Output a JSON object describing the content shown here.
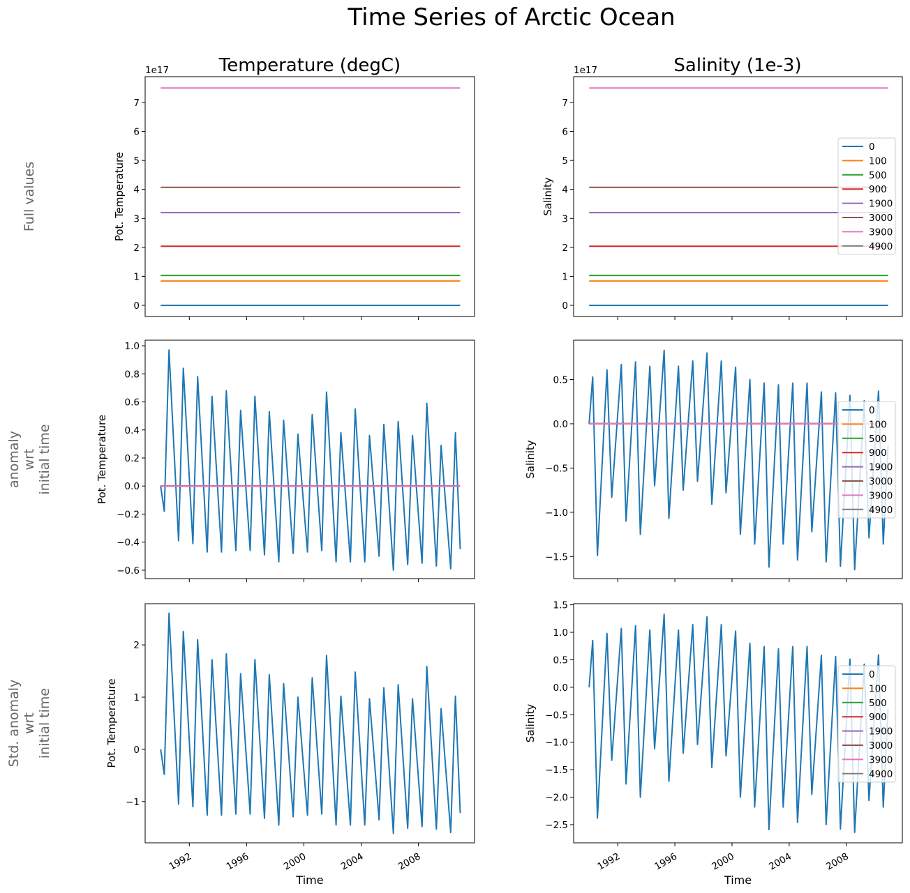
{
  "suptitle": "Time Series of Arctic Ocean",
  "column_titles": [
    "Temperature (degC)",
    "Salinity (1e-3)"
  ],
  "row_labels": [
    [
      "Full values"
    ],
    [
      "anomaly",
      "wrt",
      "initial time"
    ],
    [
      "Std. anomaly",
      "wrt",
      "initial time"
    ]
  ],
  "xlabel": "Time",
  "xticks": [
    "1992",
    "1996",
    "2000",
    "2004",
    "2008"
  ],
  "xlim": [
    "1988-12",
    "2011-12"
  ],
  "legend": {
    "depths": [
      "0",
      "100",
      "500",
      "900",
      "1900",
      "3000",
      "3900",
      "4900"
    ],
    "colors": [
      "#1f77b4",
      "#ff7f0e",
      "#2ca02c",
      "#d62728",
      "#9467bd",
      "#8c564b",
      "#e377c2",
      "#7f7f7f"
    ],
    "placement": "center-right"
  },
  "chart_data": [
    {
      "type": "line",
      "row": 0,
      "col": 0,
      "ylabel": "Pot. Temperature",
      "offset_text": "1e17",
      "ylim": [
        -0.385,
        7.89
      ],
      "yticks": [
        0,
        1,
        2,
        3,
        4,
        5,
        6,
        7
      ],
      "legend": false,
      "constant_series": {
        "0": 0,
        "100": 0.84,
        "500": 1.03,
        "900": 2.04,
        "1900": 3.2,
        "3000": 4.07,
        "3900": 7.5,
        "4900": null
      },
      "x_range": [
        "1990-01",
        "2010-12"
      ]
    },
    {
      "type": "line",
      "row": 0,
      "col": 1,
      "ylabel": "Salinity",
      "offset_text": "1e17",
      "ylim": [
        -0.385,
        7.89
      ],
      "yticks": [
        0,
        1,
        2,
        3,
        4,
        5,
        6,
        7
      ],
      "legend": true,
      "constant_series": {
        "0": 0,
        "100": 0.84,
        "500": 1.03,
        "900": 2.04,
        "1900": 3.2,
        "3000": 4.07,
        "3900": 7.5,
        "4900": null
      },
      "x_range": [
        "1990-01",
        "2010-12"
      ]
    },
    {
      "type": "line",
      "row": 1,
      "col": 0,
      "ylabel": "Pot. Temperature",
      "ylim": [
        -0.66,
        1.04
      ],
      "yticks": [
        -0.6,
        -0.4,
        -0.2,
        0.0,
        0.2,
        0.4,
        0.6,
        0.8,
        1.0
      ],
      "ytick_decimals": 1,
      "legend": false,
      "constant_series": {
        "100": 0,
        "500": 0,
        "900": 0,
        "1900": 0,
        "3000": 0,
        "3900": 0,
        "4900": null
      },
      "x_range": [
        "1990-01",
        "2010-12"
      ],
      "series_0": [
        [
          "1990-01",
          0
        ],
        [
          "1990-04",
          -0.18
        ],
        [
          "1990-08",
          0.97
        ],
        [
          "1991-04",
          -0.39
        ],
        [
          "1991-08",
          0.84
        ],
        [
          "1992-04",
          -0.41
        ],
        [
          "1992-08",
          0.78
        ],
        [
          "1993-04",
          -0.47
        ],
        [
          "1993-08",
          0.64
        ],
        [
          "1994-04",
          -0.47
        ],
        [
          "1994-08",
          0.68
        ],
        [
          "1995-04",
          -0.46
        ],
        [
          "1995-08",
          0.54
        ],
        [
          "1996-04",
          -0.46
        ],
        [
          "1996-08",
          0.64
        ],
        [
          "1997-04",
          -0.49
        ],
        [
          "1997-08",
          0.53
        ],
        [
          "1998-04",
          -0.54
        ],
        [
          "1998-08",
          0.47
        ],
        [
          "1999-04",
          -0.48
        ],
        [
          "1999-08",
          0.37
        ],
        [
          "2000-04",
          -0.47
        ],
        [
          "2000-08",
          0.51
        ],
        [
          "2001-04",
          -0.46
        ],
        [
          "2001-08",
          0.67
        ],
        [
          "2002-04",
          -0.54
        ],
        [
          "2002-08",
          0.38
        ],
        [
          "2003-04",
          -0.54
        ],
        [
          "2003-08",
          0.55
        ],
        [
          "2004-04",
          -0.54
        ],
        [
          "2004-08",
          0.36
        ],
        [
          "2005-04",
          -0.5
        ],
        [
          "2005-08",
          0.44
        ],
        [
          "2006-04",
          -0.6
        ],
        [
          "2006-08",
          0.46
        ],
        [
          "2007-04",
          -0.56
        ],
        [
          "2007-08",
          0.36
        ],
        [
          "2008-04",
          -0.55
        ],
        [
          "2008-08",
          0.59
        ],
        [
          "2009-04",
          -0.57
        ],
        [
          "2009-08",
          0.29
        ],
        [
          "2010-04",
          -0.59
        ],
        [
          "2010-08",
          0.38
        ],
        [
          "2010-12",
          -0.45
        ]
      ]
    },
    {
      "type": "line",
      "row": 1,
      "col": 1,
      "ylabel": "Salinity",
      "ylim": [
        -1.75,
        0.945
      ],
      "yticks": [
        -1.5,
        -1.0,
        -0.5,
        0.0,
        0.5
      ],
      "ytick_decimals": 1,
      "legend": true,
      "constant_series": {
        "100": 0,
        "500": 0,
        "900": 0,
        "1900": 0,
        "3000": 0,
        "3900": 0,
        "4900": null
      },
      "x_range": [
        "1990-01",
        "2010-12"
      ],
      "series_0": [
        [
          "1990-01",
          0
        ],
        [
          "1990-04",
          0.53
        ],
        [
          "1990-08",
          -1.49
        ],
        [
          "1991-04",
          0.61
        ],
        [
          "1991-08",
          -0.83
        ],
        [
          "1992-04",
          0.67
        ],
        [
          "1992-08",
          -1.1
        ],
        [
          "1993-04",
          0.7
        ],
        [
          "1993-08",
          -1.25
        ],
        [
          "1994-04",
          0.65
        ],
        [
          "1994-08",
          -0.7
        ],
        [
          "1995-04",
          0.83
        ],
        [
          "1995-08",
          -1.07
        ],
        [
          "1996-04",
          0.65
        ],
        [
          "1996-08",
          -0.75
        ],
        [
          "1997-04",
          0.71
        ],
        [
          "1997-08",
          -0.65
        ],
        [
          "1998-04",
          0.8
        ],
        [
          "1998-08",
          -0.91
        ],
        [
          "1999-04",
          0.71
        ],
        [
          "1999-08",
          -0.78
        ],
        [
          "2000-04",
          0.64
        ],
        [
          "2000-08",
          -1.25
        ],
        [
          "2001-04",
          0.5
        ],
        [
          "2001-08",
          -1.36
        ],
        [
          "2002-04",
          0.46
        ],
        [
          "2002-08",
          -1.62
        ],
        [
          "2003-04",
          0.44
        ],
        [
          "2003-08",
          -1.36
        ],
        [
          "2004-04",
          0.46
        ],
        [
          "2004-08",
          -1.54
        ],
        [
          "2005-04",
          0.46
        ],
        [
          "2005-08",
          -1.22
        ],
        [
          "2006-04",
          0.36
        ],
        [
          "2006-08",
          -1.56
        ],
        [
          "2007-04",
          0.35
        ],
        [
          "2007-08",
          -1.61
        ],
        [
          "2008-04",
          0.32
        ],
        [
          "2008-08",
          -1.65
        ],
        [
          "2009-04",
          0.26
        ],
        [
          "2009-08",
          -1.29
        ],
        [
          "2010-04",
          0.37
        ],
        [
          "2010-08",
          -1.36
        ],
        [
          "2010-12",
          -0.25
        ]
      ]
    },
    {
      "type": "line",
      "row": 2,
      "col": 0,
      "ylabel": "Pot. Temperature",
      "ylim": [
        -1.79,
        2.79
      ],
      "yticks": [
        -1,
        0,
        1,
        2
      ],
      "ytick_decimals": 0,
      "legend": false,
      "series_0": [
        [
          "1990-01",
          0
        ],
        [
          "1990-04",
          -0.48
        ],
        [
          "1990-08",
          2.61
        ],
        [
          "1991-04",
          -1.05
        ],
        [
          "1991-08",
          2.26
        ],
        [
          "1992-04",
          -1.1
        ],
        [
          "1992-08",
          2.1
        ],
        [
          "1993-04",
          -1.26
        ],
        [
          "1993-08",
          1.72
        ],
        [
          "1994-04",
          -1.26
        ],
        [
          "1994-08",
          1.83
        ],
        [
          "1995-04",
          -1.24
        ],
        [
          "1995-08",
          1.45
        ],
        [
          "1996-04",
          -1.24
        ],
        [
          "1996-08",
          1.72
        ],
        [
          "1997-04",
          -1.32
        ],
        [
          "1997-08",
          1.43
        ],
        [
          "1998-04",
          -1.45
        ],
        [
          "1998-08",
          1.26
        ],
        [
          "1999-04",
          -1.29
        ],
        [
          "1999-08",
          1.0
        ],
        [
          "2000-04",
          -1.26
        ],
        [
          "2000-08",
          1.37
        ],
        [
          "2001-04",
          -1.24
        ],
        [
          "2001-08",
          1.8
        ],
        [
          "2002-04",
          -1.45
        ],
        [
          "2002-08",
          1.02
        ],
        [
          "2003-04",
          -1.45
        ],
        [
          "2003-08",
          1.48
        ],
        [
          "2004-04",
          -1.45
        ],
        [
          "2004-08",
          0.97
        ],
        [
          "2005-04",
          -1.35
        ],
        [
          "2005-08",
          1.18
        ],
        [
          "2006-04",
          -1.61
        ],
        [
          "2006-08",
          1.24
        ],
        [
          "2007-04",
          -1.51
        ],
        [
          "2007-08",
          0.97
        ],
        [
          "2008-04",
          -1.48
        ],
        [
          "2008-08",
          1.59
        ],
        [
          "2009-04",
          -1.53
        ],
        [
          "2009-08",
          0.78
        ],
        [
          "2010-04",
          -1.59
        ],
        [
          "2010-08",
          1.02
        ],
        [
          "2010-12",
          -1.22
        ]
      ]
    },
    {
      "type": "line",
      "row": 2,
      "col": 1,
      "ylabel": "Salinity",
      "ylim": [
        -2.83,
        1.52
      ],
      "yticks": [
        -2.5,
        -2.0,
        -1.5,
        -1.0,
        -0.5,
        0.0,
        0.5,
        1.0,
        1.5
      ],
      "ytick_decimals": 1,
      "legend": true,
      "series_0": [
        [
          "1990-01",
          0
        ],
        [
          "1990-04",
          0.85
        ],
        [
          "1990-08",
          -2.38
        ],
        [
          "1991-04",
          0.98
        ],
        [
          "1991-08",
          -1.33
        ],
        [
          "1992-04",
          1.07
        ],
        [
          "1992-08",
          -1.76
        ],
        [
          "1993-04",
          1.12
        ],
        [
          "1993-08",
          -2.0
        ],
        [
          "1994-04",
          1.04
        ],
        [
          "1994-08",
          -1.12
        ],
        [
          "1995-04",
          1.33
        ],
        [
          "1995-08",
          -1.71
        ],
        [
          "1996-04",
          1.04
        ],
        [
          "1996-08",
          -1.2
        ],
        [
          "1997-04",
          1.14
        ],
        [
          "1997-08",
          -1.04
        ],
        [
          "1998-04",
          1.28
        ],
        [
          "1998-08",
          -1.46
        ],
        [
          "1999-04",
          1.14
        ],
        [
          "1999-08",
          -1.25
        ],
        [
          "2000-04",
          1.02
        ],
        [
          "2000-08",
          -2.0
        ],
        [
          "2001-04",
          0.8
        ],
        [
          "2001-08",
          -2.18
        ],
        [
          "2002-04",
          0.74
        ],
        [
          "2002-08",
          -2.59
        ],
        [
          "2003-04",
          0.7
        ],
        [
          "2003-08",
          -2.18
        ],
        [
          "2004-04",
          0.74
        ],
        [
          "2004-08",
          -2.46
        ],
        [
          "2005-04",
          0.74
        ],
        [
          "2005-08",
          -1.95
        ],
        [
          "2006-04",
          0.58
        ],
        [
          "2006-08",
          -2.5
        ],
        [
          "2007-04",
          0.56
        ],
        [
          "2007-08",
          -2.58
        ],
        [
          "2008-04",
          0.51
        ],
        [
          "2008-08",
          -2.64
        ],
        [
          "2009-04",
          0.42
        ],
        [
          "2009-08",
          -2.06
        ],
        [
          "2010-04",
          0.59
        ],
        [
          "2010-08",
          -2.18
        ],
        [
          "2010-12",
          -0.4
        ]
      ]
    }
  ]
}
